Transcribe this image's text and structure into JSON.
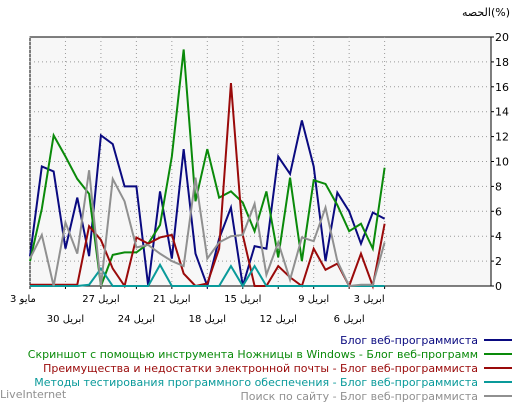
{
  "chart_data": {
    "type": "line",
    "ylabel": "الحصه(%)",
    "ylim": [
      0,
      20
    ],
    "yticks": [
      0,
      2,
      4,
      6,
      8,
      10,
      12,
      14,
      16,
      18,
      20
    ],
    "grid": true,
    "legend_position": "bottom",
    "xlim": [
      0,
      39
    ],
    "xticks_top": [
      {
        "x": 0,
        "label": "3 مايو"
      },
      {
        "x": 6,
        "label": "27 ابريل"
      },
      {
        "x": 12,
        "label": "21 ابريل"
      },
      {
        "x": 18,
        "label": "15 ابريل"
      },
      {
        "x": 24,
        "label": "9 ابريل"
      },
      {
        "x": 30,
        "label": "3 ابريل"
      }
    ],
    "xticks_bottom": [
      {
        "x": 3,
        "label": "30 ابريل"
      },
      {
        "x": 9,
        "label": "24 ابريل"
      },
      {
        "x": 15,
        "label": "18 ابريل"
      },
      {
        "x": 21,
        "label": "12 ابريل"
      },
      {
        "x": 27,
        "label": "6 ابريل"
      }
    ],
    "series": [
      {
        "name": "Блог веб-программиста",
        "color": "#0a0a80",
        "values": [
          2.4,
          9.6,
          9.2,
          3.0,
          7.1,
          2.4,
          12.1,
          11.4,
          8.0,
          8.0,
          0.0,
          7.6,
          2.2,
          11.0,
          2.6,
          0.0,
          3.8,
          6.3,
          0.0,
          3.2,
          3.0,
          10.4,
          9.0,
          13.3,
          9.6,
          2.0,
          7.5,
          6.0,
          3.4,
          5.9,
          5.4
        ]
      },
      {
        "name": "Скриншот с помощью инструмента Ножницы в Windows - Блог веб-программ",
        "color": "#0a8a0a",
        "values": [
          2.0,
          6.2,
          12.1,
          10.4,
          8.6,
          7.4,
          0.0,
          2.5,
          2.7,
          2.7,
          3.4,
          4.9,
          10.4,
          19.0,
          6.8,
          11.0,
          7.1,
          7.6,
          6.7,
          4.4,
          7.6,
          2.3,
          8.7,
          2.0,
          8.5,
          8.2,
          6.5,
          4.4,
          5.0,
          3.0,
          9.5
        ]
      },
      {
        "name": "Преимущества и недостатки электронной почты - Блог веб-программиста",
        "color": "#9a0a0a",
        "values": [
          0.1,
          0.1,
          0.1,
          0.1,
          0.1,
          4.8,
          3.7,
          1.4,
          0.0,
          3.9,
          3.4,
          3.9,
          4.1,
          1.0,
          0.0,
          0.2,
          3.0,
          16.3,
          4.1,
          0.0,
          0.0,
          1.6,
          0.7,
          0.0,
          3.0,
          1.3,
          1.8,
          0.0,
          2.6,
          0.0,
          5.0
        ]
      },
      {
        "name": "Методы тестирования программного обеспечения - Блог веб-программиста",
        "color": "#0a9a9a",
        "values": [
          0.0,
          0.0,
          0.0,
          0.0,
          0.0,
          0.1,
          1.4,
          0.0,
          0.0,
          0.0,
          0.0,
          1.7,
          0.0,
          0.0,
          0.0,
          0.0,
          0.0,
          1.6,
          0.0,
          1.6,
          0.0,
          0.0,
          0.0,
          0.0,
          0.0,
          0.0,
          0.0,
          0.0,
          0.0,
          0.0,
          0.0
        ]
      },
      {
        "name": "Поиск по сайту - Блог веб-программиста",
        "color": "#909090",
        "values": [
          2.2,
          4.1,
          0.0,
          5.1,
          2.6,
          9.3,
          0.0,
          8.6,
          6.8,
          3.1,
          3.3,
          2.6,
          2.0,
          1.6,
          8.7,
          2.2,
          3.5,
          4.0,
          4.1,
          6.6,
          0.9,
          3.5,
          0.5,
          3.9,
          3.6,
          6.3,
          2.0,
          0.0,
          0.1,
          0.1,
          3.5
        ]
      }
    ],
    "footer_text": "LiveInternet"
  }
}
